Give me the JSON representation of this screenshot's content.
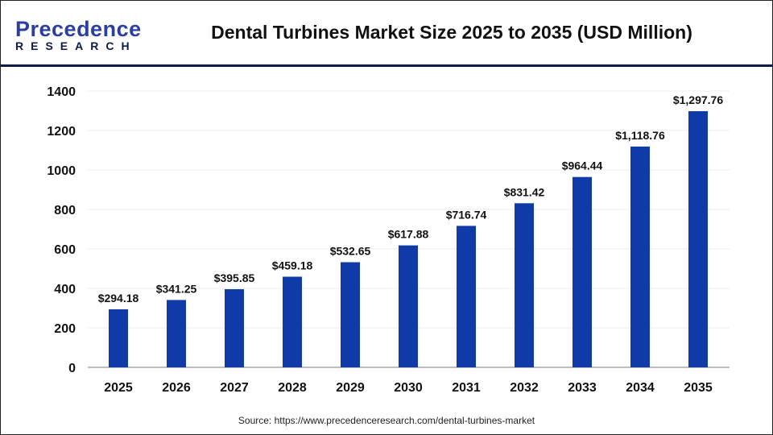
{
  "logo": {
    "line1": "Precedence",
    "line2": "RESEARCH"
  },
  "chart_data": {
    "type": "bar",
    "title": "Dental Turbines Market Size 2025 to 2035 (USD Million)",
    "categories": [
      "2025",
      "2026",
      "2027",
      "2028",
      "2029",
      "2030",
      "2031",
      "2032",
      "2033",
      "2034",
      "2035"
    ],
    "values": [
      294.18,
      341.25,
      395.85,
      459.18,
      532.65,
      617.88,
      716.74,
      831.42,
      964.44,
      1118.76,
      1297.76
    ],
    "data_labels": [
      "$294.18",
      "$341.25",
      "$395.85",
      "$459.18",
      "$532.65",
      "$617.88",
      "$716.74",
      "$831.42",
      "$964.44",
      "$1,118.76",
      "$1,297.76"
    ],
    "yticks": [
      0,
      200,
      400,
      600,
      800,
      1000,
      1200,
      1400
    ],
    "ylim": [
      0,
      1400
    ],
    "grid": true,
    "bar_color": "#0f3aa8",
    "xlabel": "",
    "ylabel": ""
  },
  "source": "Source: https://www.precedenceresearch.com/dental-turbines-market"
}
